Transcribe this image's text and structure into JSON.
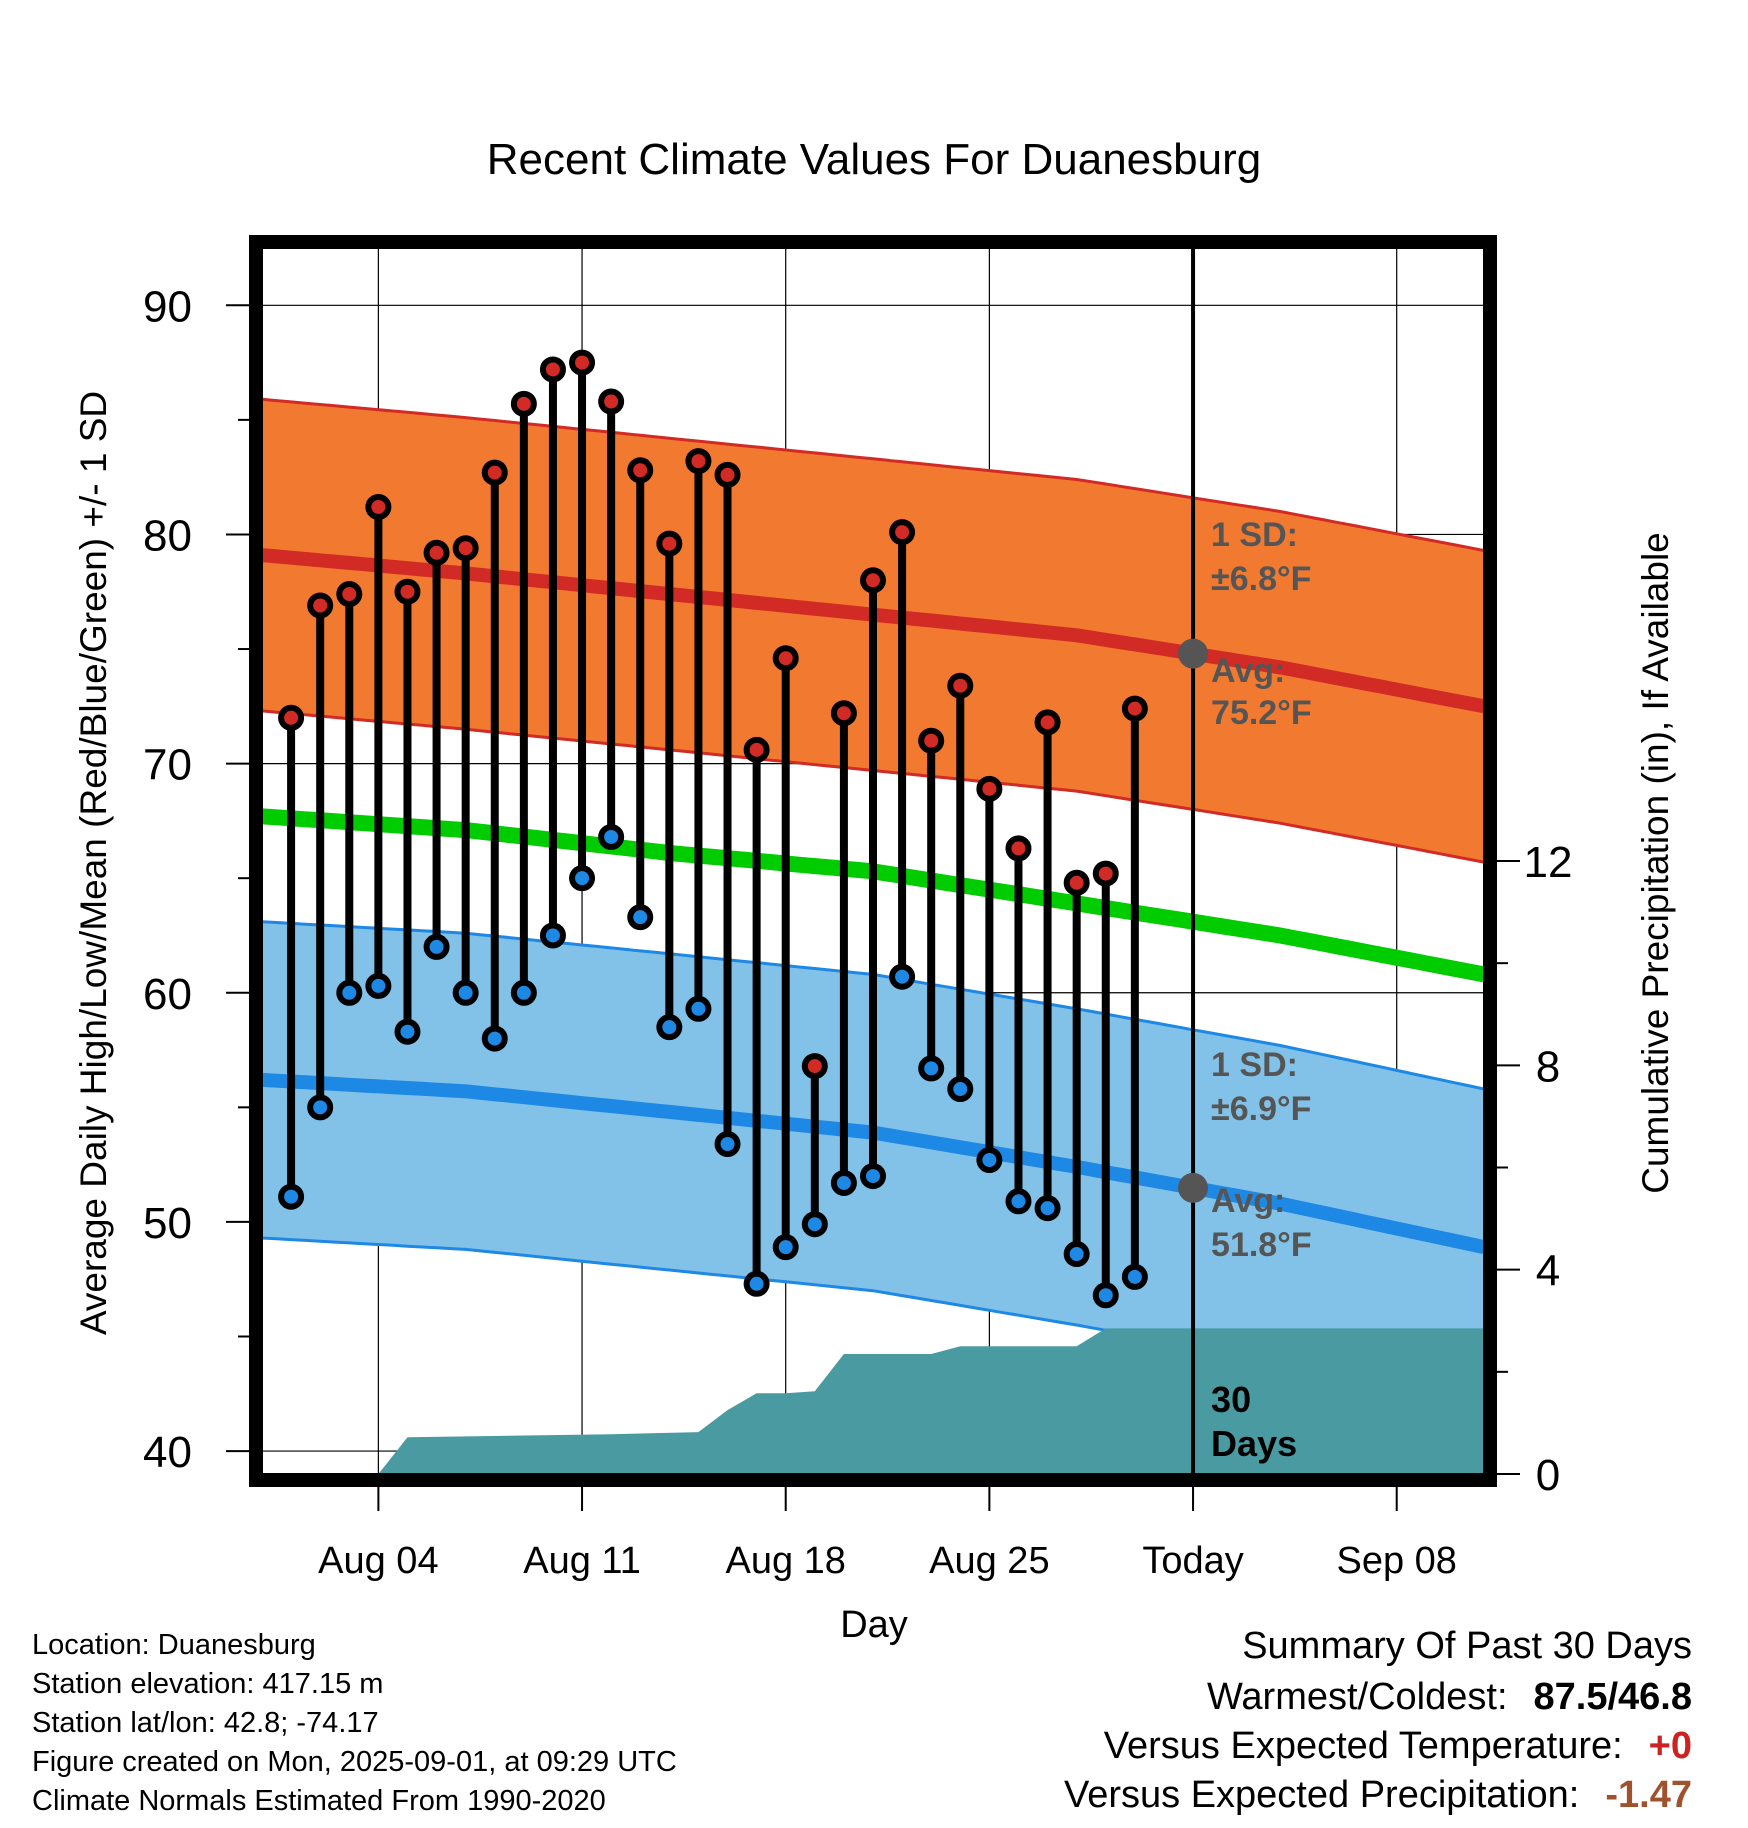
{
  "chart_data": {
    "type": "line",
    "title": "Recent Climate Values For Duanesburg",
    "xlabel": "Day",
    "ylabel": "Average Daily High/Low/Mean (Red/Blue/Green) +/- 1 SD",
    "ylabel_right": "Cumulative Precipitation (in), If Available",
    "ylim": [
      39,
      92.5
    ],
    "ylim_right": [
      0,
      24
    ],
    "yticks": [
      "40",
      "50",
      "60",
      "70",
      "80",
      "90"
    ],
    "yticks_right": [
      "0",
      "4",
      "8",
      "12"
    ],
    "xlim": [
      "2025-07-31",
      "2025-09-11"
    ],
    "xticks": [
      {
        "date": "2025-08-04",
        "label": "Aug 04"
      },
      {
        "date": "2025-08-11",
        "label": "Aug 11"
      },
      {
        "date": "2025-08-18",
        "label": "Aug 18"
      },
      {
        "date": "2025-08-25",
        "label": "Aug 25"
      },
      {
        "date": "2025-09-01",
        "label": "Today"
      },
      {
        "date": "2025-09-08",
        "label": "Sep 08"
      }
    ],
    "today": "2025-09-01",
    "grid": true,
    "observed": [
      {
        "date": "2025-08-01",
        "high": 72.0,
        "low": 51.1
      },
      {
        "date": "2025-08-02",
        "high": 76.9,
        "low": 55.0
      },
      {
        "date": "2025-08-03",
        "high": 77.4,
        "low": 60.0
      },
      {
        "date": "2025-08-04",
        "high": 81.2,
        "low": 60.3
      },
      {
        "date": "2025-08-05",
        "high": 77.5,
        "low": 58.3
      },
      {
        "date": "2025-08-06",
        "high": 79.2,
        "low": 62.0
      },
      {
        "date": "2025-08-07",
        "high": 79.4,
        "low": 60.0
      },
      {
        "date": "2025-08-08",
        "high": 82.7,
        "low": 58.0
      },
      {
        "date": "2025-08-09",
        "high": 85.7,
        "low": 60.0
      },
      {
        "date": "2025-08-10",
        "high": 87.2,
        "low": 62.5
      },
      {
        "date": "2025-08-11",
        "high": 87.5,
        "low": 65.0
      },
      {
        "date": "2025-08-12",
        "high": 85.8,
        "low": 66.8
      },
      {
        "date": "2025-08-13",
        "high": 82.8,
        "low": 63.3
      },
      {
        "date": "2025-08-14",
        "high": 79.6,
        "low": 58.5
      },
      {
        "date": "2025-08-15",
        "high": 83.2,
        "low": 59.3
      },
      {
        "date": "2025-08-16",
        "high": 82.6,
        "low": 53.4
      },
      {
        "date": "2025-08-17",
        "high": 70.6,
        "low": 47.3
      },
      {
        "date": "2025-08-18",
        "high": 74.6,
        "low": 48.9
      },
      {
        "date": "2025-08-19",
        "high": 56.8,
        "low": 49.9
      },
      {
        "date": "2025-08-20",
        "high": 72.2,
        "low": 51.7
      },
      {
        "date": "2025-08-21",
        "high": 78.0,
        "low": 52.0
      },
      {
        "date": "2025-08-22",
        "high": 80.1,
        "low": 60.7
      },
      {
        "date": "2025-08-23",
        "high": 71.0,
        "low": 56.7
      },
      {
        "date": "2025-08-24",
        "high": 73.4,
        "low": 55.8
      },
      {
        "date": "2025-08-25",
        "high": 68.9,
        "low": 52.7
      },
      {
        "date": "2025-08-26",
        "high": 66.3,
        "low": 50.9
      },
      {
        "date": "2025-08-27",
        "high": 71.8,
        "low": 50.6
      },
      {
        "date": "2025-08-28",
        "high": 64.8,
        "low": 48.6
      },
      {
        "date": "2025-08-29",
        "high": 65.2,
        "low": 46.8
      },
      {
        "date": "2025-08-30",
        "high": 72.4,
        "low": 47.6
      }
    ],
    "normals": [
      {
        "date": "2025-07-31",
        "high_avg": 79.1,
        "low_avg": 56.2,
        "mean_avg": 67.7
      },
      {
        "date": "2025-08-07",
        "high_avg": 78.3,
        "low_avg": 55.7,
        "mean_avg": 67.1
      },
      {
        "date": "2025-08-14",
        "high_avg": 77.4,
        "low_avg": 54.8,
        "mean_avg": 66.1
      },
      {
        "date": "2025-08-21",
        "high_avg": 76.5,
        "low_avg": 53.9,
        "mean_avg": 65.3
      },
      {
        "date": "2025-08-28",
        "high_avg": 75.6,
        "low_avg": 52.4,
        "mean_avg": 63.9
      },
      {
        "date": "2025-09-04",
        "high_avg": 74.2,
        "low_avg": 50.8,
        "mean_avg": 62.5
      },
      {
        "date": "2025-09-11",
        "high_avg": 72.5,
        "low_avg": 48.9,
        "mean_avg": 60.8
      }
    ],
    "high_sd": 6.8,
    "low_sd": 6.9,
    "precipitation_cumulative": [
      {
        "date": "2025-08-04",
        "value": 0
      },
      {
        "date": "2025-08-05",
        "value": 0.72
      },
      {
        "date": "2025-08-12",
        "value": 0.78
      },
      {
        "date": "2025-08-15",
        "value": 0.82
      },
      {
        "date": "2025-08-16",
        "value": 1.25
      },
      {
        "date": "2025-08-17",
        "value": 1.58
      },
      {
        "date": "2025-08-18",
        "value": 1.58
      },
      {
        "date": "2025-08-19",
        "value": 1.62
      },
      {
        "date": "2025-08-20",
        "value": 2.35
      },
      {
        "date": "2025-08-23",
        "value": 2.35
      },
      {
        "date": "2025-08-24",
        "value": 2.5
      },
      {
        "date": "2025-08-28",
        "value": 2.5
      },
      {
        "date": "2025-08-29",
        "value": 2.85
      },
      {
        "date": "2025-09-11",
        "value": 2.85
      }
    ],
    "annotations": {
      "high_sd": "1 SD:",
      "high_sd_val": "±6.8°F",
      "high_avg": "Avg:",
      "high_avg_val": "75.2°F",
      "low_sd": "1 SD:",
      "low_sd_val": "±6.9°F",
      "low_avg": "Avg:",
      "low_avg_val": "51.8°F",
      "days_num": "30",
      "days_word": "Days"
    },
    "colors": {
      "high": "#d22a24",
      "low": "#1e88e5",
      "mean": "#00cc00",
      "high_band": "#f27a30",
      "low_band": "#82c2e8",
      "precip": "#4a9aa2",
      "annotation": "#555555"
    }
  },
  "info": {
    "location": "Location: Duanesburg",
    "elevation": "Station elevation: 417.15 m",
    "latlon": "Station lat/lon: 42.8; -74.17",
    "created": "Figure created on Mon, 2025-09-01, at 09:29 UTC",
    "normals": "Climate Normals Estimated From 1990-2020"
  },
  "summary": {
    "title": "Summary Of Past 30 Days",
    "warmest_label": "Warmest/Coldest:",
    "warmest_value": "87.5/46.8",
    "temp_label": "Versus Expected Temperature:",
    "temp_value": "+0",
    "temp_color": "#cc2222",
    "precip_label": "Versus Expected Precipitation:",
    "precip_value": "-1.47",
    "precip_color": "#a0522d"
  }
}
